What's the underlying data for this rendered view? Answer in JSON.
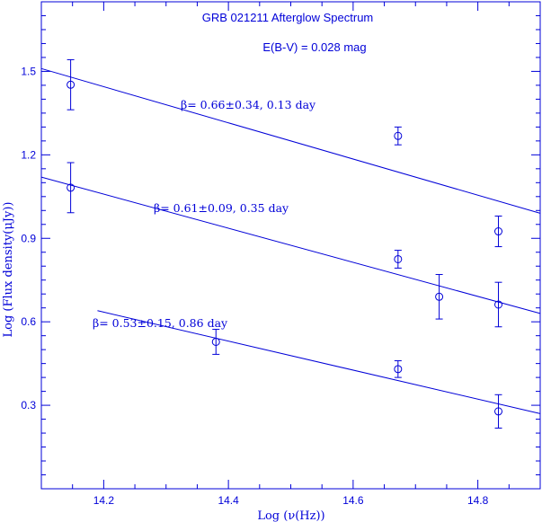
{
  "chart_data": {
    "type": "scatter",
    "title": "GRB 021211 Afterglow Spectrum",
    "subtitle": "E(B-V) = 0.028 mag",
    "xlabel": "Log (ν(Hz))",
    "ylabel": "Log (Flux density(μJy))",
    "xlim": [
      14.1,
      14.9
    ],
    "ylim": [
      0.0,
      1.75
    ],
    "x_ticks": [
      "14.2",
      "14.4",
      "14.6",
      "14.8"
    ],
    "y_ticks": [
      "0.3",
      "0.6",
      "0.9",
      "1.2",
      "1.5"
    ],
    "grid": false,
    "color": "#0000d8",
    "series": [
      {
        "label": "β= 0.66±0.34, 0.13 day",
        "points": [
          {
            "x": 14.147,
            "y": 1.452,
            "err": 0.09
          },
          {
            "x": 14.672,
            "y": 1.268,
            "err": 0.032
          },
          {
            "x": 14.833,
            "y": 0.925,
            "err": 0.055
          }
        ],
        "fit": {
          "x": [
            14.1,
            14.9
          ],
          "y": [
            1.51,
            0.99
          ]
        }
      },
      {
        "label": "β= 0.61±0.09, 0.35 day",
        "points": [
          {
            "x": 14.147,
            "y": 1.082,
            "err": 0.09
          },
          {
            "x": 14.672,
            "y": 0.825,
            "err": 0.032
          },
          {
            "x": 14.738,
            "y": 0.69,
            "err": 0.08
          },
          {
            "x": 14.833,
            "y": 0.662,
            "err": 0.08
          }
        ],
        "fit": {
          "x": [
            14.1,
            14.9
          ],
          "y": [
            1.12,
            0.63
          ]
        }
      },
      {
        "label": "β= 0.53±0.15, 0.86 day",
        "points": [
          {
            "x": 14.38,
            "y": 0.528,
            "err": 0.045
          },
          {
            "x": 14.672,
            "y": 0.43,
            "err": 0.03
          },
          {
            "x": 14.833,
            "y": 0.278,
            "err": 0.06
          }
        ],
        "fit": {
          "x": [
            14.19,
            14.9
          ],
          "y": [
            0.64,
            0.27
          ]
        }
      }
    ]
  }
}
